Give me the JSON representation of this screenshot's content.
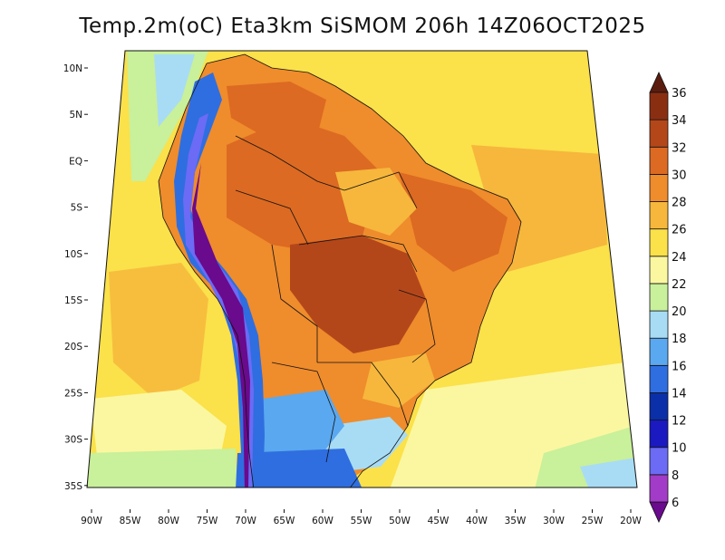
{
  "title": "Temp.2m(oC) Eta3km SiSMOM 206h 14Z06OCT2025",
  "map": {
    "lat_labels": [
      "10N",
      "5N",
      "EQ",
      "5S",
      "10S",
      "15S",
      "20S",
      "25S",
      "30S",
      "35S"
    ],
    "lon_labels": [
      "90W",
      "85W",
      "80W",
      "75W",
      "70W",
      "65W",
      "60W",
      "55W",
      "50W",
      "45W",
      "40W",
      "35W",
      "30W",
      "25W",
      "20W"
    ],
    "lat_values": [
      10,
      5,
      0,
      -5,
      -10,
      -15,
      -20,
      -25,
      -30,
      -35
    ],
    "lon_values": [
      -90,
      -85,
      -80,
      -75,
      -70,
      -65,
      -60,
      -55,
      -50,
      -45,
      -40,
      -35,
      -30,
      -25,
      -20
    ]
  },
  "colorbar": {
    "levels": [
      "6",
      "8",
      "10",
      "12",
      "14",
      "16",
      "18",
      "20",
      "22",
      "24",
      "26",
      "28",
      "30",
      "32",
      "34",
      "36"
    ],
    "colors": [
      "#6a0a8c",
      "#a23bc8",
      "#6b6bf5",
      "#1a1ac0",
      "#0a2fa8",
      "#2f6ee0",
      "#5aa8f0",
      "#a8dcf5",
      "#c9f09a",
      "#fbf7a0",
      "#fbe14a",
      "#f6b73c",
      "#ef8c2c",
      "#dc6a22",
      "#b4471a",
      "#8a2e12",
      "#5a1c0e"
    ]
  },
  "palette": {
    "ocean_warm": "#fbe14a",
    "ocean_mid": "#f6b73c",
    "ocean_cool": "#fbf7a0",
    "land_hot": "#dc6a22",
    "land_very_hot": "#b4471a",
    "andes": "#2f6ee0",
    "south_cold": "#5aa8f0"
  }
}
